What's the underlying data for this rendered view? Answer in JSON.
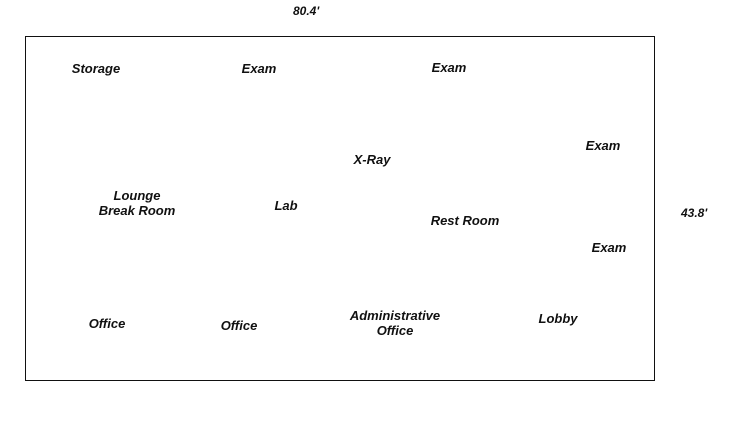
{
  "dimensions": {
    "width_label": "80.4'",
    "height_label": "43.8'"
  },
  "rooms": {
    "storage": "Storage",
    "exam_1": "Exam",
    "exam_2": "Exam",
    "exam_3": "Exam",
    "exam_4": "Exam",
    "x_ray": "X-Ray",
    "lounge": "Lounge",
    "break_room": "Break Room",
    "lab": "Lab",
    "rest_room": "Rest Room",
    "office_1": "Office",
    "office_2": "Office",
    "admin_line1": "Administrative",
    "admin_line2": "Office",
    "lobby": "Lobby"
  }
}
